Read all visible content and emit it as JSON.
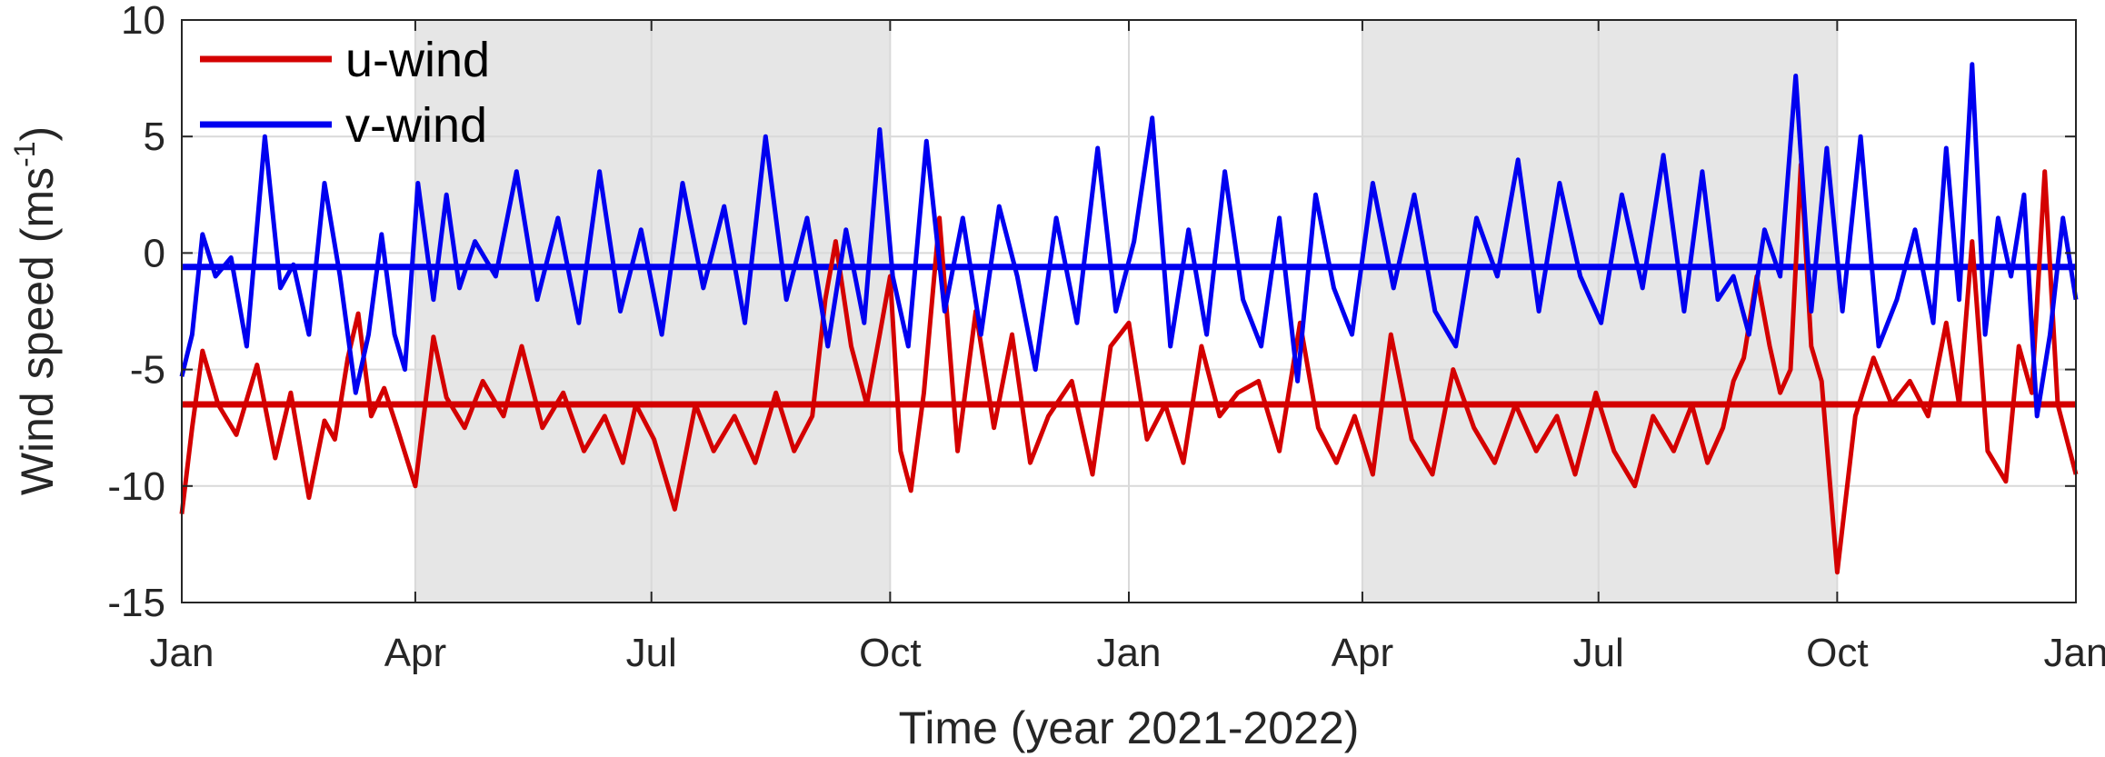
{
  "chart_data": {
    "type": "line",
    "title": "",
    "xlabel": "Time (year 2021-2022)",
    "ylabel_main": "Wind speed (ms",
    "ylabel_sup": "-1",
    "ylabel_tail": ")",
    "ylim": [
      -15,
      10
    ],
    "yticks": [
      -15,
      -10,
      -5,
      0,
      5,
      10
    ],
    "yticklabels": [
      "-15",
      "-10",
      "-5",
      "0",
      "5",
      "10"
    ],
    "xlim": [
      "2021-01-01",
      "2023-01-01"
    ],
    "xticks": [
      "2021-01-01",
      "2021-04-01",
      "2021-07-01",
      "2021-10-01",
      "2022-01-01",
      "2022-04-01",
      "2022-07-01",
      "2022-10-01",
      "2023-01-01"
    ],
    "xticklabels": [
      "Jan",
      "Apr",
      "Jul",
      "Oct",
      "Jan",
      "Apr",
      "Jul",
      "Oct",
      "Jan"
    ],
    "shaded_periods": [
      [
        "2021-04-01",
        "2021-10-01"
      ],
      [
        "2022-04-01",
        "2022-10-01"
      ]
    ],
    "grid": true,
    "legend_position": "top-left",
    "series": [
      {
        "name": "u-wind",
        "color": "#d40000",
        "mean": -6.5,
        "x": [
          "2021-01-01",
          "2021-01-05",
          "2021-01-09",
          "2021-01-15",
          "2021-01-22",
          "2021-01-30",
          "2021-02-06",
          "2021-02-12",
          "2021-02-19",
          "2021-02-25",
          "2021-03-01",
          "2021-03-06",
          "2021-03-10",
          "2021-03-15",
          "2021-03-20",
          "2021-03-25",
          "2021-04-01",
          "2021-04-08",
          "2021-04-13",
          "2021-04-20",
          "2021-04-27",
          "2021-05-05",
          "2021-05-12",
          "2021-05-20",
          "2021-05-28",
          "2021-06-05",
          "2021-06-13",
          "2021-06-20",
          "2021-06-25",
          "2021-07-02",
          "2021-07-10",
          "2021-07-18",
          "2021-07-25",
          "2021-08-02",
          "2021-08-10",
          "2021-08-18",
          "2021-08-25",
          "2021-09-01",
          "2021-09-06",
          "2021-09-10",
          "2021-09-16",
          "2021-09-22",
          "2021-09-27",
          "2021-10-01",
          "2021-10-05",
          "2021-10-09",
          "2021-10-14",
          "2021-10-20",
          "2021-10-27",
          "2021-11-03",
          "2021-11-10",
          "2021-11-17",
          "2021-11-24",
          "2021-12-01",
          "2021-12-10",
          "2021-12-18",
          "2021-12-25",
          "2022-01-01",
          "2022-01-08",
          "2022-01-15",
          "2022-01-22",
          "2022-01-29",
          "2022-02-05",
          "2022-02-12",
          "2022-02-20",
          "2022-02-28",
          "2022-03-08",
          "2022-03-15",
          "2022-03-22",
          "2022-03-29",
          "2022-04-05",
          "2022-04-12",
          "2022-04-20",
          "2022-04-28",
          "2022-05-06",
          "2022-05-14",
          "2022-05-22",
          "2022-05-30",
          "2022-06-07",
          "2022-06-15",
          "2022-06-22",
          "2022-06-30",
          "2022-07-07",
          "2022-07-15",
          "2022-07-22",
          "2022-07-30",
          "2022-08-06",
          "2022-08-12",
          "2022-08-18",
          "2022-08-22",
          "2022-08-26",
          "2022-08-31",
          "2022-09-05",
          "2022-09-09",
          "2022-09-13",
          "2022-09-17",
          "2022-09-21",
          "2022-09-25",
          "2022-10-01",
          "2022-10-08",
          "2022-10-15",
          "2022-10-22",
          "2022-10-29",
          "2022-11-05",
          "2022-11-12",
          "2022-11-17",
          "2022-11-22",
          "2022-11-28",
          "2022-12-05",
          "2022-12-10",
          "2022-12-15",
          "2022-12-20",
          "2022-12-25",
          "2023-01-01"
        ],
        "values": [
          -11.2,
          -7.5,
          -4.2,
          -6.5,
          -7.8,
          -4.8,
          -8.8,
          -6.0,
          -10.5,
          -7.2,
          -8.0,
          -4.5,
          -2.6,
          -7.0,
          -5.8,
          -7.5,
          -10.0,
          -3.6,
          -6.2,
          -7.5,
          -5.5,
          -7.0,
          -4.0,
          -7.5,
          -6.0,
          -8.5,
          -7.0,
          -9.0,
          -6.5,
          -8.0,
          -11.0,
          -6.5,
          -8.5,
          -7.0,
          -9.0,
          -6.0,
          -8.5,
          -7.0,
          -2.0,
          0.5,
          -4.0,
          -6.5,
          -3.5,
          -1.0,
          -8.5,
          -10.2,
          -6.0,
          1.5,
          -8.5,
          -2.5,
          -7.5,
          -3.5,
          -9.0,
          -7.0,
          -5.5,
          -9.5,
          -4.0,
          -3.0,
          -8.0,
          -6.5,
          -9.0,
          -4.0,
          -7.0,
          -6.0,
          -5.5,
          -8.5,
          -3.0,
          -7.5,
          -9.0,
          -7.0,
          -9.5,
          -3.5,
          -8.0,
          -9.5,
          -5.0,
          -7.5,
          -9.0,
          -6.5,
          -8.5,
          -7.0,
          -9.5,
          -6.0,
          -8.5,
          -10.0,
          -7.0,
          -8.5,
          -6.5,
          -9.0,
          -7.5,
          -5.5,
          -4.5,
          -1.0,
          -4.0,
          -6.0,
          -5.0,
          3.8,
          -4.0,
          -5.5,
          -13.7,
          -7.0,
          -4.5,
          -6.5,
          -5.5,
          -7.0,
          -3.0,
          -6.5,
          0.5,
          -8.5,
          -9.8,
          -4.0,
          -6.0,
          3.5,
          -6.5,
          -9.5
        ]
      },
      {
        "name": "v-wind",
        "color": "#0000f0",
        "mean": -0.6,
        "x": [
          "2021-01-01",
          "2021-01-05",
          "2021-01-09",
          "2021-01-14",
          "2021-01-20",
          "2021-01-26",
          "2021-02-02",
          "2021-02-08",
          "2021-02-13",
          "2021-02-19",
          "2021-02-25",
          "2021-03-03",
          "2021-03-09",
          "2021-03-14",
          "2021-03-19",
          "2021-03-24",
          "2021-03-28",
          "2021-04-02",
          "2021-04-08",
          "2021-04-13",
          "2021-04-18",
          "2021-04-24",
          "2021-05-02",
          "2021-05-10",
          "2021-05-18",
          "2021-05-26",
          "2021-06-03",
          "2021-06-11",
          "2021-06-19",
          "2021-06-27",
          "2021-07-05",
          "2021-07-13",
          "2021-07-21",
          "2021-07-29",
          "2021-08-06",
          "2021-08-14",
          "2021-08-22",
          "2021-08-30",
          "2021-09-07",
          "2021-09-14",
          "2021-09-21",
          "2021-09-27",
          "2021-10-02",
          "2021-10-08",
          "2021-10-15",
          "2021-10-22",
          "2021-10-29",
          "2021-11-05",
          "2021-11-12",
          "2021-11-19",
          "2021-11-26",
          "2021-12-04",
          "2021-12-12",
          "2021-12-20",
          "2021-12-27",
          "2022-01-03",
          "2022-01-10",
          "2022-01-17",
          "2022-01-24",
          "2022-01-31",
          "2022-02-07",
          "2022-02-14",
          "2022-02-21",
          "2022-02-28",
          "2022-03-07",
          "2022-03-14",
          "2022-03-21",
          "2022-03-28",
          "2022-04-05",
          "2022-04-13",
          "2022-04-21",
          "2022-04-29",
          "2022-05-07",
          "2022-05-15",
          "2022-05-23",
          "2022-05-31",
          "2022-06-08",
          "2022-06-16",
          "2022-06-24",
          "2022-07-02",
          "2022-07-10",
          "2022-07-18",
          "2022-07-26",
          "2022-08-03",
          "2022-08-10",
          "2022-08-16",
          "2022-08-22",
          "2022-08-28",
          "2022-09-03",
          "2022-09-09",
          "2022-09-15",
          "2022-09-21",
          "2022-09-27",
          "2022-10-03",
          "2022-10-10",
          "2022-10-17",
          "2022-10-24",
          "2022-10-31",
          "2022-11-07",
          "2022-11-12",
          "2022-11-17",
          "2022-11-22",
          "2022-11-27",
          "2022-12-02",
          "2022-12-07",
          "2022-12-12",
          "2022-12-17",
          "2022-12-22",
          "2022-12-27",
          "2023-01-01"
        ],
        "values": [
          -5.3,
          -3.5,
          0.8,
          -1.0,
          -0.2,
          -4.0,
          5.0,
          -1.5,
          -0.5,
          -3.5,
          3.0,
          -1.0,
          -6.0,
          -3.5,
          0.8,
          -3.5,
          -5.0,
          3.0,
          -2.0,
          2.5,
          -1.5,
          0.5,
          -1.0,
          3.5,
          -2.0,
          1.5,
          -3.0,
          3.5,
          -2.5,
          1.0,
          -3.5,
          3.0,
          -1.5,
          2.0,
          -3.0,
          5.0,
          -2.0,
          1.5,
          -4.0,
          1.0,
          -3.0,
          5.3,
          -1.0,
          -4.0,
          4.8,
          -2.5,
          1.5,
          -3.5,
          2.0,
          -1.0,
          -5.0,
          1.5,
          -3.0,
          4.5,
          -2.5,
          0.5,
          5.8,
          -4.0,
          1.0,
          -3.5,
          3.5,
          -2.0,
          -4.0,
          1.5,
          -5.5,
          2.5,
          -1.5,
          -3.5,
          3.0,
          -1.5,
          2.5,
          -2.5,
          -4.0,
          1.5,
          -1.0,
          4.0,
          -2.5,
          3.0,
          -1.0,
          -3.0,
          2.5,
          -1.5,
          4.2,
          -2.5,
          3.5,
          -2.0,
          -1.0,
          -3.5,
          1.0,
          -1.0,
          7.6,
          -2.5,
          4.5,
          -2.5,
          5.0,
          -4.0,
          -2.0,
          1.0,
          -3.0,
          4.5,
          -2.0,
          8.1,
          -3.5,
          1.5,
          -1.0,
          2.5,
          -7.0,
          -3.5,
          1.5,
          -2.0
        ]
      }
    ]
  }
}
